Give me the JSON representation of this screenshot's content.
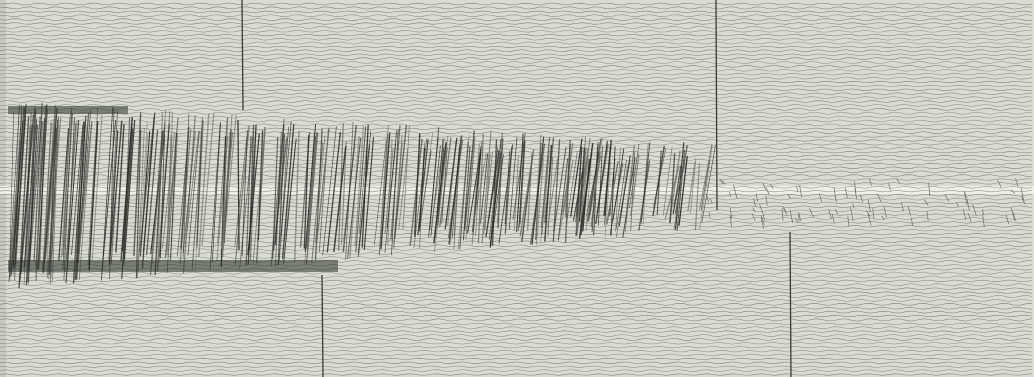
{
  "image": {
    "subject": "seismogram",
    "colors": {
      "paper": "#dadbd5",
      "paper_light": "#ecede8",
      "trace": "#2e2f2a",
      "trace_light": "#6d6e68",
      "timing_mark": "#3b3c37"
    }
  }
}
